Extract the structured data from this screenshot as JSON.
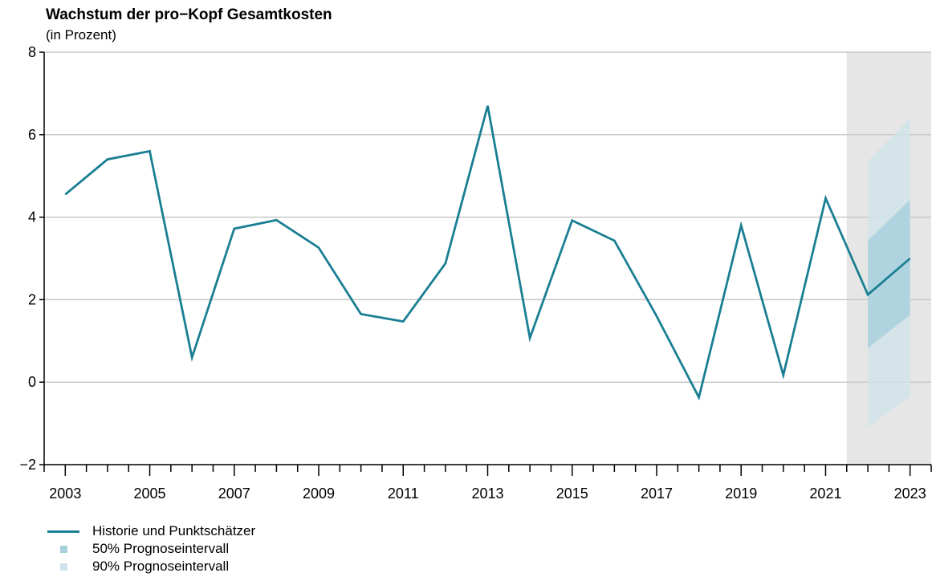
{
  "chart_data": {
    "type": "line",
    "title": "Wachstum der pro−Kopf Gesamtkosten",
    "subtitle": "(in Prozent)",
    "xlabel": "",
    "ylabel": "",
    "ylim": [
      -2,
      8
    ],
    "xlim": [
      2002.5,
      2023.5
    ],
    "y_ticks": [
      "−2",
      "0",
      "2",
      "4",
      "6",
      "8"
    ],
    "x_ticks": [
      "2003",
      "2005",
      "2007",
      "2009",
      "2011",
      "2013",
      "2015",
      "2017",
      "2019",
      "2021",
      "2023"
    ],
    "grid": "horizontal",
    "forecast_shading": {
      "from": 2021.5,
      "to": 2023.5
    },
    "series": [
      {
        "name": "Historie und Punktschätzer",
        "x": [
          2003,
          2004,
          2005,
          2006,
          2007,
          2008,
          2009,
          2010,
          2011,
          2012,
          2013,
          2014,
          2015,
          2016,
          2017,
          2018,
          2019,
          2020,
          2021,
          2022,
          2023
        ],
        "values": [
          4.55,
          5.4,
          5.6,
          0.6,
          3.72,
          3.93,
          3.26,
          1.65,
          1.47,
          2.88,
          6.7,
          1.07,
          3.92,
          3.43,
          1.6,
          -0.37,
          3.8,
          0.17,
          4.46,
          2.12,
          3.0
        ]
      }
    ],
    "intervals": [
      {
        "name": "50% Prognoseintervall",
        "x": [
          2022,
          2023
        ],
        "lower": [
          0.82,
          1.63
        ],
        "upper": [
          3.43,
          4.42
        ]
      },
      {
        "name": "90% Prognoseintervall",
        "x": [
          2022,
          2023
        ],
        "lower": [
          -1.1,
          -0.35
        ],
        "upper": [
          5.36,
          6.4
        ]
      }
    ],
    "legend_position": "bottom-left"
  },
  "colors": {
    "line": "#1a7f93",
    "interval_50": "#a6d0dc",
    "interval_90": "#cfe4ea",
    "forecast_bg": "#e6e6e6",
    "grid": "#c8c8c8",
    "axis": "#000000"
  },
  "legend": [
    {
      "label": "Historie und Punktschätzer",
      "kind": "line",
      "color": "#1a7f93"
    },
    {
      "label": "50% Prognoseintervall",
      "kind": "box",
      "color": "#a6d0dc"
    },
    {
      "label": "90% Prognoseintervall",
      "kind": "box",
      "color": "#cfe4ea"
    }
  ]
}
